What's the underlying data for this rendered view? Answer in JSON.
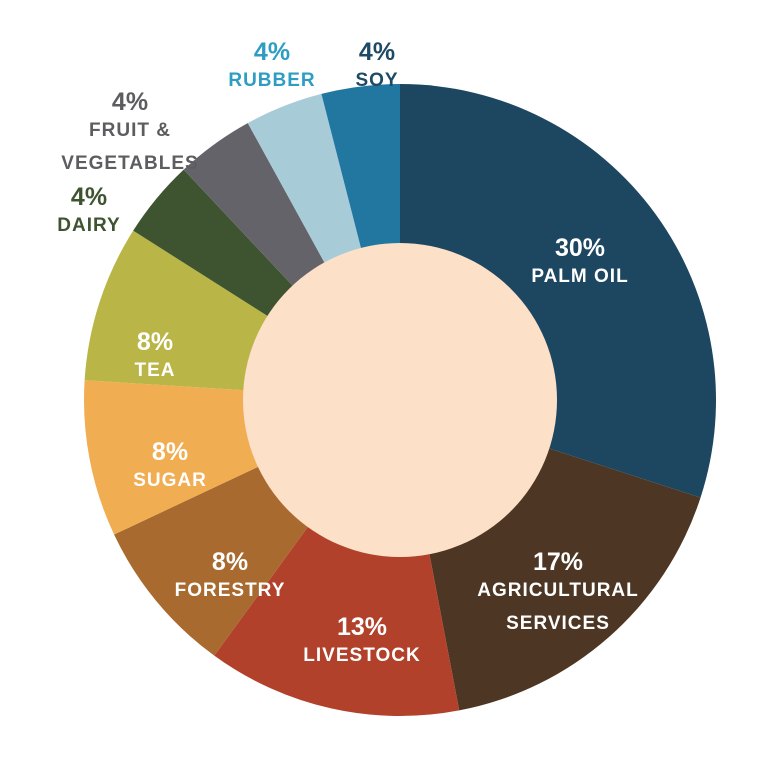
{
  "chart_data": {
    "type": "pie",
    "donut": true,
    "legend": "none",
    "center_color": "#fde0c8",
    "slices": [
      {
        "value": 30,
        "pct_label": "30%",
        "name_lines": [
          "PALM OIL"
        ],
        "color": "#1d4761",
        "label_color": "#ffffff"
      },
      {
        "value": 17,
        "pct_label": "17%",
        "name_lines": [
          "AGRICULTURAL",
          "SERVICES"
        ],
        "color": "#4d3623",
        "label_color": "#ffffff"
      },
      {
        "value": 13,
        "pct_label": "13%",
        "name_lines": [
          "LIVESTOCK"
        ],
        "color": "#b1412b",
        "label_color": "#ffffff"
      },
      {
        "value": 8,
        "pct_label": "8%",
        "name_lines": [
          "FORESTRY"
        ],
        "color": "#a86a2f",
        "label_color": "#ffffff"
      },
      {
        "value": 8,
        "pct_label": "8%",
        "name_lines": [
          "SUGAR"
        ],
        "color": "#f1ad52",
        "label_color": "#ffffff"
      },
      {
        "value": 8,
        "pct_label": "8%",
        "name_lines": [
          "TEA"
        ],
        "color": "#b9b546",
        "label_color": "#ffffff"
      },
      {
        "value": 4,
        "pct_label": "4%",
        "name_lines": [
          "DAIRY"
        ],
        "color": "#3e5430",
        "label_color": "#3e5430"
      },
      {
        "value": 4,
        "pct_label": "4%",
        "name_lines": [
          "FRUIT &",
          "VEGETABLES"
        ],
        "color": "#636369",
        "label_color": "#5d5d61"
      },
      {
        "value": 4,
        "pct_label": "4%",
        "name_lines": [
          "RUBBER"
        ],
        "color": "#a7cbd7",
        "label_color": "#2e9dc2"
      },
      {
        "value": 4,
        "pct_label": "4%",
        "name_lines": [
          "SOY"
        ],
        "color": "#2277a1",
        "label_color": "#1e4a66"
      }
    ]
  }
}
